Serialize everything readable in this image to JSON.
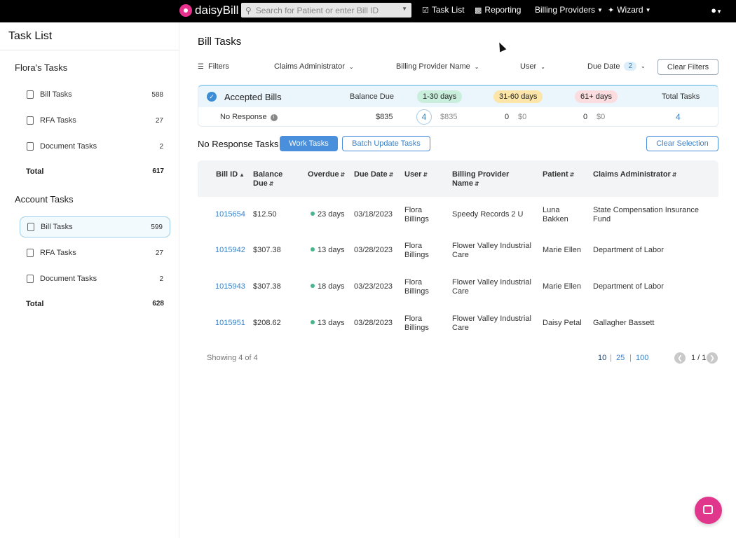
{
  "topbar": {
    "brand": "daisyBill",
    "search_placeholder": "Search for Patient or enter Bill ID",
    "nav": [
      {
        "label": "Task List"
      },
      {
        "label": "Reporting"
      },
      {
        "label": "Billing Providers"
      },
      {
        "label": "Wizard"
      }
    ]
  },
  "sidebar": {
    "title": "Task List",
    "groups": [
      {
        "title": "Flora's Tasks",
        "items": [
          {
            "label": "Bill Tasks",
            "count": "588"
          },
          {
            "label": "RFA Tasks",
            "count": "27"
          },
          {
            "label": "Document Tasks",
            "count": "2"
          }
        ],
        "total_label": "Total",
        "total": "617"
      },
      {
        "title": "Account Tasks",
        "items": [
          {
            "label": "Bill Tasks",
            "count": "599"
          },
          {
            "label": "RFA Tasks",
            "count": "27"
          },
          {
            "label": "Document Tasks",
            "count": "2"
          }
        ],
        "total_label": "Total",
        "total": "628"
      }
    ]
  },
  "main": {
    "title": "Bill Tasks",
    "filters": {
      "label": "Filters",
      "claims_admin": "Claims Administrator",
      "billing_provider": "Billing Provider Name",
      "user": "User",
      "due_date": "Due Date",
      "due_date_count": "2",
      "clear": "Clear Filters"
    },
    "summary": {
      "status": "Accepted Bills",
      "balance_due": "Balance Due",
      "bucket1": "1-30 days",
      "bucket2": "31-60 days",
      "bucket3": "61+ days",
      "total_tasks": "Total Tasks",
      "row_label": "No Response",
      "row_balance": "$835",
      "b1_count": "4",
      "b1_amount": "$835",
      "b2_count": "0",
      "b2_amount": "$0",
      "b3_count": "0",
      "b3_amount": "$0",
      "row_total": "4",
      "colors": {
        "bucket1": "#c9efdc",
        "bucket2": "#fbe5a8",
        "bucket3": "#fbdde0"
      }
    },
    "section": {
      "title": "No Response Tasks",
      "work_tasks": "Work Tasks",
      "batch_update": "Batch Update Tasks",
      "clear_selection": "Clear Selection"
    },
    "table": {
      "headers": {
        "bill_id": "Bill ID",
        "balance_l1": "Balance",
        "balance_l2": "Due",
        "overdue": "Overdue",
        "due_date": "Due Date",
        "user": "User",
        "provider_l1": "Billing Provider",
        "provider_l2": "Name",
        "patient": "Patient",
        "claims_admin": "Claims Administrator"
      },
      "rows": [
        {
          "bill_id": "1015654",
          "balance": "$12.50",
          "overdue": "23 days",
          "due_date": "03/18/2023",
          "user_l1": "Flora",
          "user_l2": "Billings",
          "provider_l1": "Speedy Records 2 U",
          "provider_l2": "",
          "patient_l1": "Luna",
          "patient_l2": "Bakken",
          "admin_l1": "State Compensation Insurance",
          "admin_l2": "Fund"
        },
        {
          "bill_id": "1015942",
          "balance": "$307.38",
          "overdue": "13 days",
          "due_date": "03/28/2023",
          "user_l1": "Flora",
          "user_l2": "Billings",
          "provider_l1": "Flower Valley Industrial",
          "provider_l2": "Care",
          "patient_l1": "Marie Ellen",
          "patient_l2": "",
          "admin_l1": "Department of Labor",
          "admin_l2": ""
        },
        {
          "bill_id": "1015943",
          "balance": "$307.38",
          "overdue": "18 days",
          "due_date": "03/23/2023",
          "user_l1": "Flora",
          "user_l2": "Billings",
          "provider_l1": "Flower Valley Industrial",
          "provider_l2": "Care",
          "patient_l1": "Marie Ellen",
          "patient_l2": "",
          "admin_l1": "Department of Labor",
          "admin_l2": ""
        },
        {
          "bill_id": "1015951",
          "balance": "$208.62",
          "overdue": "13 days",
          "due_date": "03/28/2023",
          "user_l1": "Flora",
          "user_l2": "Billings",
          "provider_l1": "Flower Valley Industrial",
          "provider_l2": "Care",
          "patient_l1": "Daisy Petal",
          "patient_l2": "",
          "admin_l1": "Gallagher Bassett",
          "admin_l2": ""
        }
      ]
    },
    "footer": {
      "showing": "Showing 4 of 4",
      "page_sizes": [
        "10",
        "25",
        "100"
      ],
      "page_indicator": "1 / 1"
    }
  },
  "colors": {
    "accent": "#4a8fdb",
    "brand": "#e8318d",
    "overdue_dot": "#47b58c"
  }
}
